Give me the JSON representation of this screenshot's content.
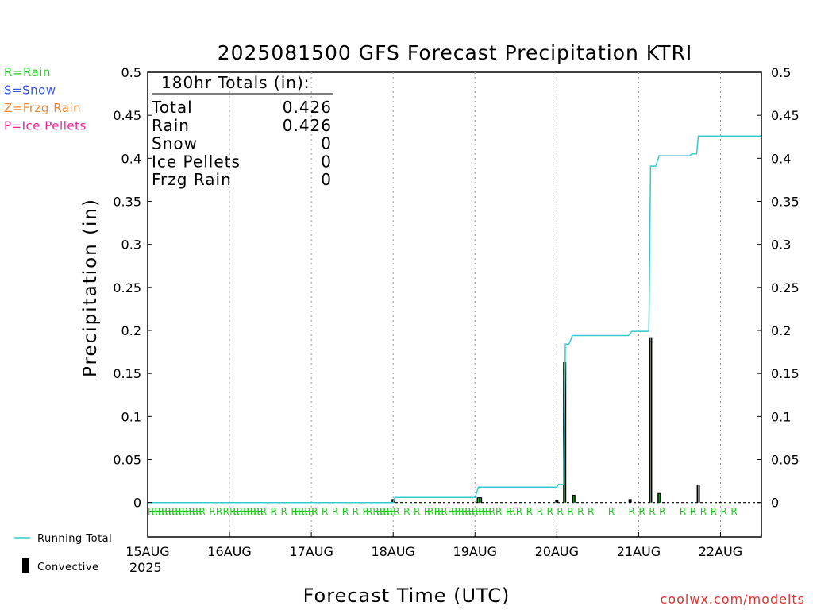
{
  "chart_data": {
    "type": "bar+line",
    "title": "2025081500 GFS Forecast Precipitation KTRI",
    "ylabel": "Precipitation (in)",
    "xlabel": "Forecast Time (UTC)",
    "ylim": [
      -0.04,
      0.5
    ],
    "y_ticks": [
      0,
      0.05,
      0.1,
      0.15,
      0.2,
      0.25,
      0.3,
      0.35,
      0.4,
      0.45,
      0.5
    ],
    "y_tick_labels": [
      "0",
      "0.05",
      "0.1",
      "0.15",
      "0.2",
      "0.25",
      "0.3",
      "0.35",
      "0.4",
      "0.45",
      "0.5"
    ],
    "x_hour_range": [
      0,
      180
    ],
    "x_ticks": [
      {
        "hour": 0,
        "label": "15AUG"
      },
      {
        "hour": 24,
        "label": "16AUG"
      },
      {
        "hour": 48,
        "label": "17AUG"
      },
      {
        "hour": 72,
        "label": "18AUG"
      },
      {
        "hour": 96,
        "label": "19AUG"
      },
      {
        "hour": 120,
        "label": "20AUG"
      },
      {
        "hour": 144,
        "label": "21AUG"
      },
      {
        "hour": 168,
        "label": "22AUG"
      }
    ],
    "year_label": "2025",
    "grid": "vertical dotted at day boundaries",
    "legend": {
      "precip_types": [
        {
          "label": "R=Rain",
          "color": "#22cc22"
        },
        {
          "label": "S=Snow",
          "color": "#3355ee"
        },
        {
          "label": "Z=Frzg Rain",
          "color": "#ee8833"
        },
        {
          "label": "P=Ice Pellets",
          "color": "#ee2299"
        }
      ],
      "running_total_label": "Running Total",
      "convective_label": "Convective"
    },
    "totals_box": {
      "header": "180hr Totals (in):",
      "rows": [
        {
          "label": "Total",
          "value": "0.426"
        },
        {
          "label": "Rain",
          "value": "0.426"
        },
        {
          "label": "Snow",
          "value": "0"
        },
        {
          "label": "Ice Pellets",
          "value": "0"
        },
        {
          "label": "Frzg Rain",
          "value": "0"
        }
      ]
    },
    "running_total": {
      "name": "Running Total",
      "color": "#33cccc",
      "points": [
        [
          0,
          0
        ],
        [
          72,
          0
        ],
        [
          72.5,
          0.006
        ],
        [
          96,
          0.006
        ],
        [
          97,
          0.018
        ],
        [
          120,
          0.018
        ],
        [
          120.5,
          0.021
        ],
        [
          122,
          0.021
        ],
        [
          122.5,
          0.184
        ],
        [
          123.5,
          0.184
        ],
        [
          124,
          0.188
        ],
        [
          124.5,
          0.194
        ],
        [
          141,
          0.194
        ],
        [
          142,
          0.199
        ],
        [
          147,
          0.199
        ],
        [
          147.5,
          0.391
        ],
        [
          149,
          0.391
        ],
        [
          150,
          0.403
        ],
        [
          159,
          0.403
        ],
        [
          159.5,
          0.405
        ],
        [
          161,
          0.405
        ],
        [
          161.5,
          0.426
        ],
        [
          180,
          0.426
        ]
      ]
    },
    "bars": {
      "color": "#000000",
      "inner_color": "#22cc22",
      "points": [
        [
          72,
          0.004
        ],
        [
          97,
          0.006
        ],
        [
          97.6,
          0.006
        ],
        [
          120,
          0.003
        ],
        [
          122.3,
          0.163
        ],
        [
          125,
          0.009
        ],
        [
          141.5,
          0.004
        ],
        [
          147.5,
          0.192
        ],
        [
          150,
          0.011
        ],
        [
          161.5,
          0.021
        ]
      ]
    },
    "rain_markers": {
      "symbol": "R",
      "color": "#22cc22",
      "hours": [
        0,
        1,
        2,
        3,
        4,
        5,
        6,
        7,
        8,
        9,
        10,
        11,
        12,
        13,
        14,
        15,
        18,
        20,
        22,
        24,
        25,
        26,
        27,
        28,
        29,
        30,
        31,
        32,
        33,
        36,
        36,
        39,
        42,
        43,
        44,
        45,
        46,
        47,
        48,
        51,
        54,
        57,
        60,
        63,
        64,
        66,
        67,
        68,
        69,
        70,
        71,
        72,
        75,
        78,
        81,
        82,
        84,
        85,
        86,
        88,
        89,
        90,
        91,
        92,
        93,
        94,
        95,
        96,
        97,
        98,
        99,
        100,
        102,
        105,
        106,
        108,
        111,
        114,
        117,
        120,
        123,
        126,
        129,
        135,
        141,
        144,
        147,
        150,
        156,
        159,
        162,
        165,
        168,
        171
      ]
    },
    "credit": "coolwx.com/modelts"
  }
}
